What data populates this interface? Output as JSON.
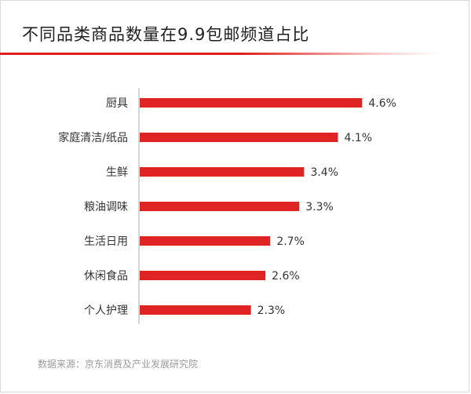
{
  "title": "不同品类商品数量在9.9包邮频道占比",
  "source": "数据来源：京东消费及产业发展研究院",
  "colors": {
    "bar": "#e02424",
    "accent": "#e02020",
    "axis": "#c8c8c8",
    "label": "#333333",
    "source": "#9a9a9a"
  },
  "chart_data": {
    "type": "bar",
    "orientation": "horizontal",
    "categories": [
      "厨具",
      "家庭清洁/纸品",
      "生鲜",
      "粮油调味",
      "生活日用",
      "休闲食品",
      "个人护理"
    ],
    "values": [
      4.6,
      4.1,
      3.4,
      3.3,
      2.7,
      2.6,
      2.3
    ],
    "value_labels": [
      "4.6%",
      "4.1%",
      "3.4%",
      "3.3%",
      "2.7%",
      "2.6%",
      "2.3%"
    ],
    "unit": "%",
    "xlim": [
      0,
      5
    ],
    "grid": false,
    "legend": "none"
  }
}
